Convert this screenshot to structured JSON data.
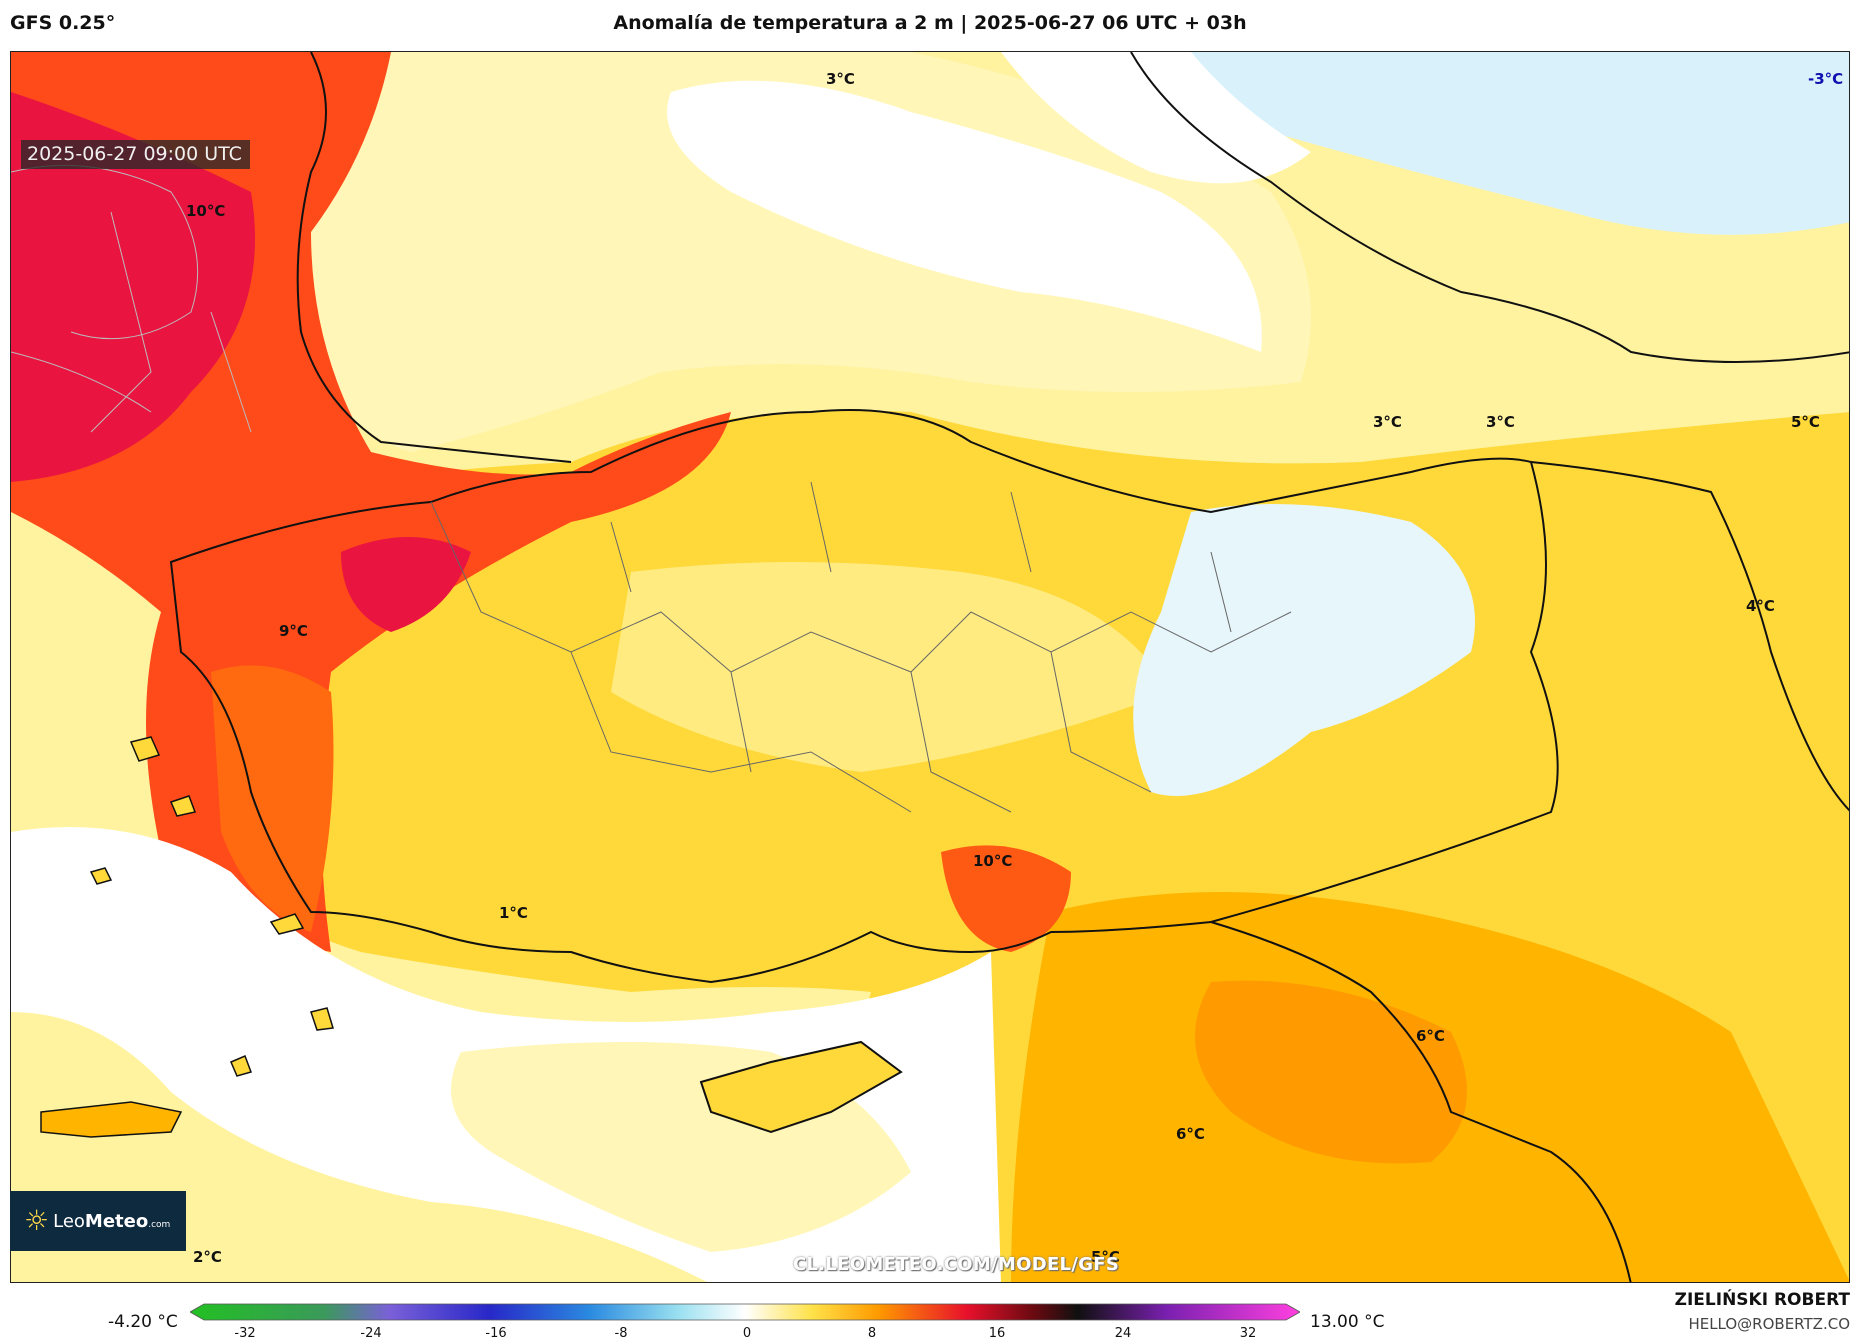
{
  "header": {
    "model": "GFS 0.25°",
    "title": "Anomalía de temperatura a 2 m | 2025-06-27 06 UTC + 03h"
  },
  "timestamp": "2025-06-27 09:00 UTC",
  "labels": {
    "l1": "3°C",
    "l2": "-3°C",
    "l3": "10°C",
    "l4": "3°C",
    "l5": "3°C",
    "l6": "5°C",
    "l7": "9°C",
    "l8": "4°C",
    "l9": "10°C",
    "l10": "1°C",
    "l11": "6°C",
    "l12": "6°C",
    "l13": "2°C",
    "l14": "5°C"
  },
  "logo": {
    "light": "Leo",
    "bold": "Meteo",
    "suffix": ".com"
  },
  "watermark": "CL.LEOMETEO.COM/MODEL/GFS",
  "colorbar": {
    "min_label": "-4.20 °C",
    "max_label": "13.00 °C",
    "ticks": [
      "-32",
      "-24",
      "-16",
      "-8",
      "0",
      "8",
      "16",
      "24",
      "32"
    ]
  },
  "credits": {
    "author": "ZIELIŃSKI ROBERT",
    "email": "HELLO@ROBERTZ.CO"
  },
  "colors": {
    "sea_cold": "#ffffff",
    "light_blue": "#d6f0fa",
    "pale_yellow": "#fff6b0",
    "yellow": "#ffe24a",
    "orange": "#ffb400",
    "dark_orange": "#ff8a00",
    "red": "#ff3a1a",
    "crimson": "#e8103c"
  }
}
